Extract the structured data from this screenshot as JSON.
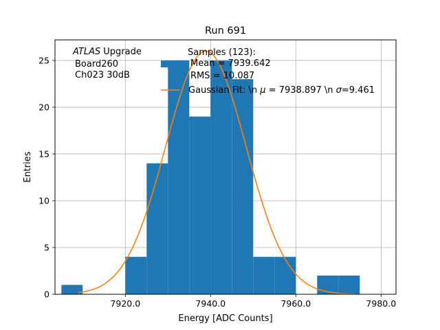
{
  "chart_data": {
    "type": "bar",
    "title": "Run 691",
    "xlabel": "Energy [ADC Counts]",
    "ylabel": "Entries",
    "xlim": [
      7903.5,
      7983.5
    ],
    "ylim": [
      0,
      27.2
    ],
    "x_ticks": [
      7920,
      7940,
      7960,
      7980
    ],
    "x_tick_labels": [
      "7920.0",
      "7940.0",
      "7960.0",
      "7980.0"
    ],
    "y_ticks": [
      0,
      5,
      10,
      15,
      20,
      25
    ],
    "y_tick_labels": [
      "0",
      "5",
      "10",
      "15",
      "20",
      "25"
    ],
    "grid": true,
    "legend_position": "top-right",
    "annotation": {
      "atlas": "ATLAS",
      "upgrade": "Upgrade",
      "board": "Board260",
      "channel": "Ch023 30dB"
    },
    "histogram": {
      "name": "Samples (123):",
      "color": "#1f77b4",
      "bins": [
        {
          "x0": 7905,
          "x1": 7910,
          "count": 1
        },
        {
          "x0": 7920,
          "x1": 7925,
          "count": 4
        },
        {
          "x0": 7925,
          "x1": 7930,
          "count": 14
        },
        {
          "x0": 7930,
          "x1": 7935,
          "count": 25
        },
        {
          "x0": 7935,
          "x1": 7940,
          "count": 19
        },
        {
          "x0": 7940,
          "x1": 7945,
          "count": 25
        },
        {
          "x0": 7945,
          "x1": 7950,
          "count": 23
        },
        {
          "x0": 7950,
          "x1": 7955,
          "count": 4
        },
        {
          "x0": 7955,
          "x1": 7960,
          "count": 4
        },
        {
          "x0": 7965,
          "x1": 7970,
          "count": 2
        },
        {
          "x0": 7970,
          "x1": 7975,
          "count": 2
        }
      ]
    },
    "fit": {
      "name": "Gaussian Fit: \\n $\\mu$ = 7938.897 \\n $\\sigma$=9.461",
      "color": "#ff7f0e",
      "mean": 7938.897,
      "sigma": 9.461,
      "amplitude": 26.0,
      "x_range": [
        7909,
        7974
      ]
    },
    "legend": {
      "samples_line1": "Samples (123):",
      "samples_line2": "Mean = 7939.642",
      "samples_line3": "RMS = 10.087",
      "fit_prefix": "Gaussian Fit: \\n ",
      "fit_mu": "μ",
      "fit_middle": " = 7938.897 \\n ",
      "fit_sigma": "σ",
      "fit_suffix": "=9.461"
    }
  }
}
